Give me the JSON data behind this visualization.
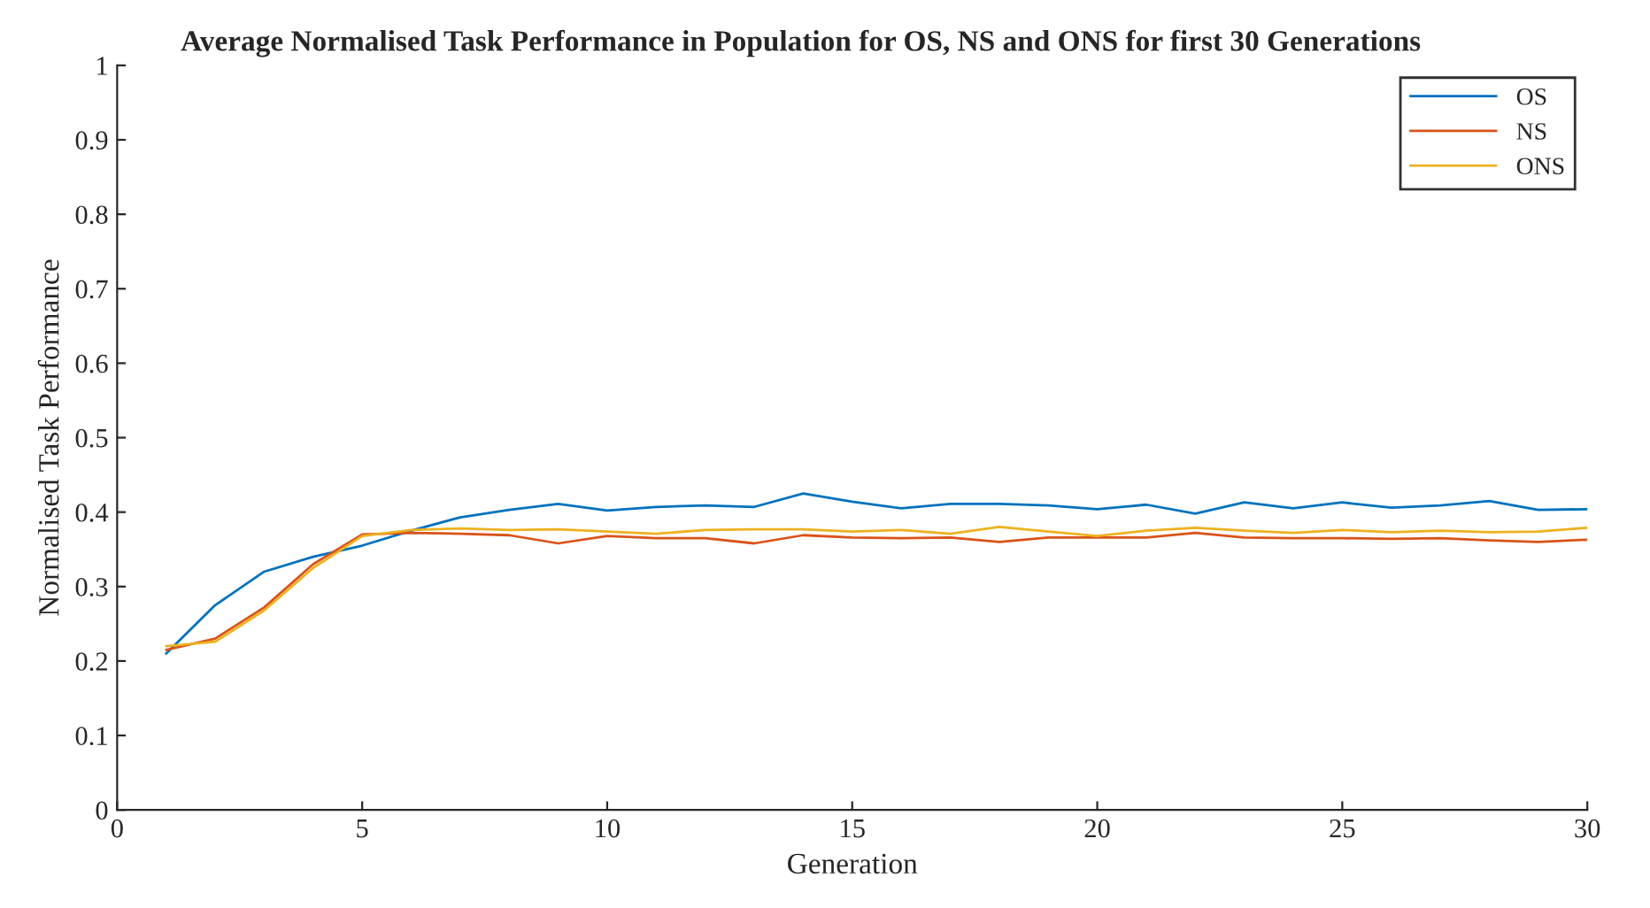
{
  "chart_data": {
    "type": "line",
    "title": "Average Normalised Task Performance in Population for OS, NS and ONS for first 30 Generations",
    "xlabel": "Generation",
    "ylabel": "Normalised Task Performance",
    "x": [
      1,
      2,
      3,
      4,
      5,
      6,
      7,
      8,
      9,
      10,
      11,
      12,
      13,
      14,
      15,
      16,
      17,
      18,
      19,
      20,
      21,
      22,
      23,
      24,
      25,
      26,
      27,
      28,
      29,
      30
    ],
    "series": [
      {
        "name": "OS",
        "color": "#0072bd",
        "values": [
          0.21,
          0.275,
          0.32,
          0.34,
          0.355,
          0.375,
          0.393,
          0.403,
          0.411,
          0.402,
          0.407,
          0.409,
          0.407,
          0.425,
          0.414,
          0.405,
          0.411,
          0.411,
          0.409,
          0.404,
          0.41,
          0.398,
          0.413,
          0.405,
          0.413,
          0.406,
          0.409,
          0.415,
          0.403,
          0.404
        ]
      },
      {
        "name": "NS",
        "color": "#d95319",
        "values": [
          0.215,
          0.23,
          0.272,
          0.33,
          0.37,
          0.372,
          0.371,
          0.369,
          0.358,
          0.368,
          0.365,
          0.365,
          0.358,
          0.369,
          0.366,
          0.365,
          0.366,
          0.36,
          0.366,
          0.366,
          0.366,
          0.372,
          0.366,
          0.365,
          0.365,
          0.364,
          0.365,
          0.362,
          0.36,
          0.363
        ]
      },
      {
        "name": "ONS",
        "color": "#edb120",
        "values": [
          0.22,
          0.226,
          0.268,
          0.325,
          0.368,
          0.376,
          0.378,
          0.376,
          0.377,
          0.374,
          0.371,
          0.376,
          0.377,
          0.377,
          0.374,
          0.376,
          0.371,
          0.38,
          0.374,
          0.368,
          0.375,
          0.379,
          0.375,
          0.372,
          0.376,
          0.373,
          0.375,
          0.373,
          0.374,
          0.379
        ]
      }
    ],
    "xlim": [
      0,
      30
    ],
    "xticks": [
      0,
      5,
      10,
      15,
      20,
      25,
      30
    ],
    "ylim": [
      0,
      1
    ],
    "yticks": [
      0,
      0.1,
      0.2,
      0.3,
      0.4,
      0.5,
      0.6,
      0.7,
      0.8,
      0.9,
      1
    ],
    "grid": false,
    "legend": "top right"
  }
}
